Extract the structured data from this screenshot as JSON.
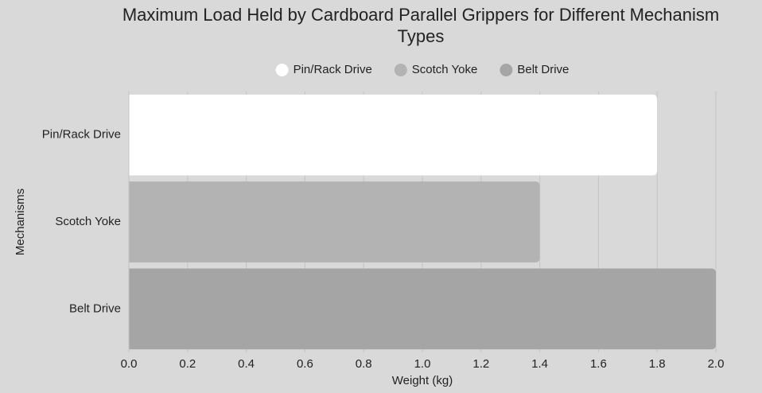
{
  "chart_data": {
    "type": "bar",
    "orientation": "horizontal",
    "title": "Maximum Load Held by Cardboard Parallel Grippers for Different Mechanism Types",
    "categories": [
      "Pin/Rack Drive",
      "Scotch Yoke",
      "Belt Drive"
    ],
    "values": [
      1.8,
      1.4,
      2.0
    ],
    "colors": [
      "#ffffff",
      "#b3b3b3",
      "#a5a5a5"
    ],
    "xlabel": "Weight (kg)",
    "ylabel": "Mechanisms",
    "xlim": [
      0,
      2
    ],
    "xticks": [
      {
        "value": 0,
        "label": "0.0"
      },
      0.2,
      0.4,
      0.6,
      0.8,
      {
        "value": 1,
        "label": "1.0"
      },
      1.2,
      1.4,
      1.6,
      1.8,
      {
        "value": 2,
        "label": "2.0"
      }
    ],
    "grid": true,
    "legend": "top"
  }
}
